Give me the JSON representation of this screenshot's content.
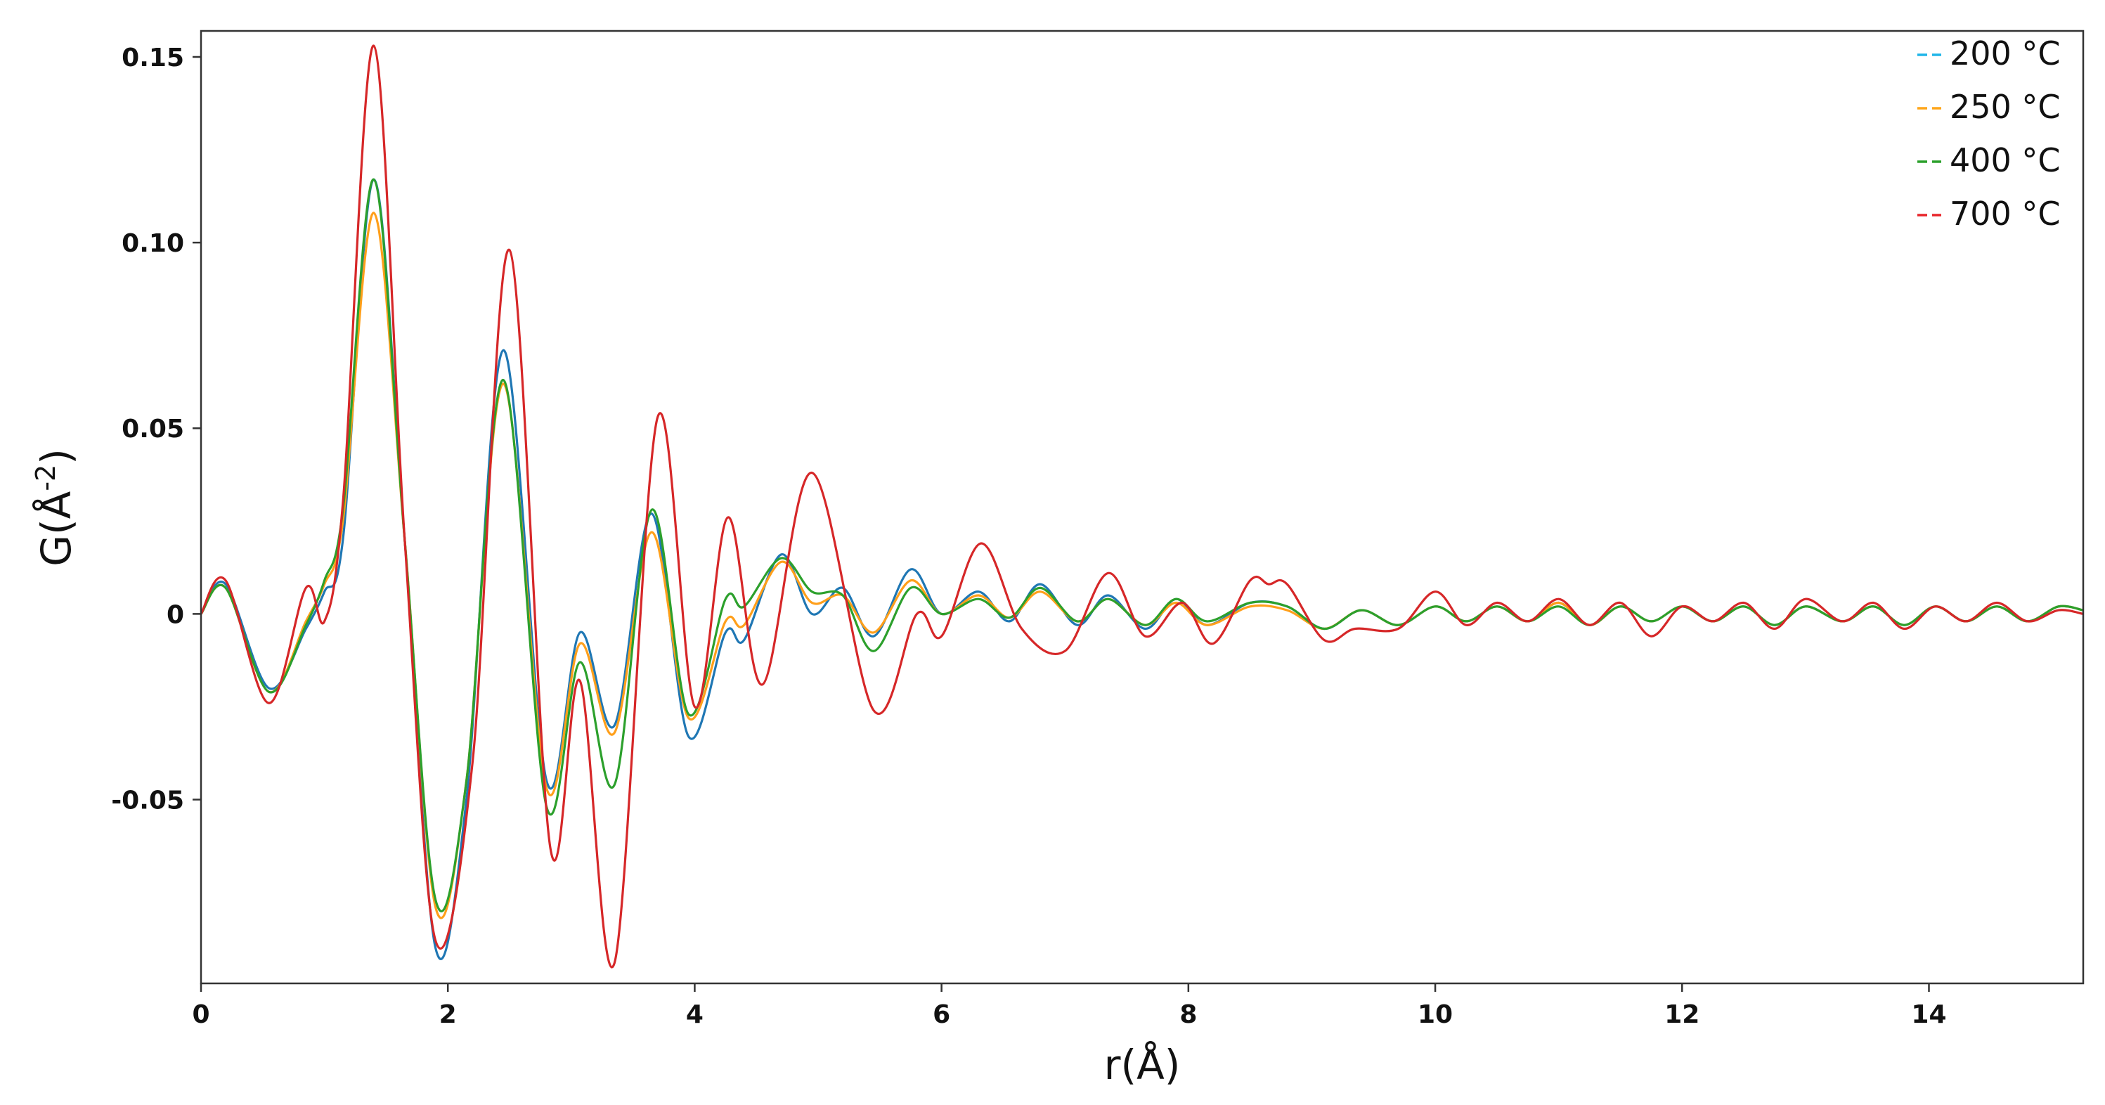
{
  "chart_data": {
    "type": "line",
    "title": "",
    "xlabel": "r(Å)",
    "ylabel_main": "G(Å",
    "ylabel_sup": "-2",
    "ylabel_close": ")",
    "xlim": [
      0,
      15.25
    ],
    "ylim": [
      -0.0995,
      0.157
    ],
    "xticks": [
      0,
      2,
      4,
      6,
      8,
      10,
      12,
      14
    ],
    "xtick_labels": [
      "0",
      "2",
      "4",
      "6",
      "8",
      "10",
      "12",
      "14"
    ],
    "yticks": [
      -0.05,
      0,
      0.05,
      0.1,
      0.15
    ],
    "ytick_labels": [
      "-0.05",
      "0",
      "0.05",
      "0.10",
      "0.15"
    ],
    "grid": false,
    "legend_position": "top-right",
    "legend_swatch_colors": [
      "#1fb5e8",
      "#ffa51a",
      "#2ca02c",
      "#e8252a"
    ],
    "series": [
      {
        "name": "200 °C",
        "color": "#1f77b4",
        "x": [
          0,
          0.2,
          0.55,
          0.85,
          1.0,
          1.15,
          1.4,
          1.65,
          1.9,
          2.15,
          2.45,
          2.8,
          3.07,
          3.35,
          3.65,
          3.95,
          4.25,
          4.4,
          4.7,
          4.95,
          5.2,
          5.45,
          5.75,
          6.0,
          6.3,
          6.55,
          6.8,
          7.1,
          7.35,
          7.65,
          7.9,
          8.15,
          8.5,
          8.8,
          9.1,
          9.4,
          9.7,
          10.0,
          10.25,
          10.5,
          10.75,
          11.0,
          11.25,
          11.5,
          11.75,
          12.0,
          12.25,
          12.5,
          12.75,
          13.0,
          13.3,
          13.55,
          13.8,
          14.05,
          14.3,
          14.55,
          14.8,
          15.05,
          15.25
        ],
        "y": [
          0,
          0.008,
          -0.02,
          -0.004,
          0.006,
          0.02,
          0.117,
          0.02,
          -0.09,
          -0.05,
          0.071,
          -0.045,
          -0.005,
          -0.03,
          0.027,
          -0.033,
          -0.005,
          -0.007,
          0.016,
          0.0,
          0.007,
          -0.006,
          0.012,
          0.0,
          0.006,
          -0.002,
          0.008,
          -0.003,
          0.005,
          -0.004,
          0.004,
          -0.003,
          0.003,
          0.002,
          -0.004,
          0.001,
          -0.003,
          0.002,
          -0.002,
          0.002,
          -0.002,
          0.003,
          -0.003,
          0.002,
          -0.002,
          0.002,
          -0.002,
          0.002,
          -0.003,
          0.002,
          -0.002,
          0.002,
          -0.003,
          0.002,
          -0.002,
          0.002,
          -0.002,
          0.002,
          0.001
        ]
      },
      {
        "name": "250 °C",
        "color": "#ff9f1a",
        "x": [
          0,
          0.2,
          0.55,
          0.85,
          1.0,
          1.15,
          1.4,
          1.65,
          1.9,
          2.15,
          2.45,
          2.8,
          3.07,
          3.35,
          3.65,
          3.95,
          4.25,
          4.4,
          4.7,
          4.95,
          5.2,
          5.45,
          5.75,
          6.0,
          6.3,
          6.55,
          6.8,
          7.1,
          7.35,
          7.65,
          7.9,
          8.15,
          8.5,
          8.8,
          9.1,
          9.4,
          9.7,
          10.0,
          10.25,
          10.5,
          10.75,
          11.0,
          11.25,
          11.5,
          11.75,
          12.0,
          12.25,
          12.5,
          12.75,
          13.0,
          13.3,
          13.55,
          13.8,
          14.05,
          14.3,
          14.55,
          14.8,
          15.05,
          15.25
        ],
        "y": [
          0,
          0.007,
          -0.021,
          -0.002,
          0.008,
          0.025,
          0.108,
          0.02,
          -0.079,
          -0.045,
          0.062,
          -0.047,
          -0.008,
          -0.032,
          0.022,
          -0.028,
          -0.002,
          -0.003,
          0.014,
          0.003,
          0.005,
          -0.005,
          0.009,
          0.0,
          0.005,
          -0.001,
          0.006,
          -0.002,
          0.004,
          -0.003,
          0.003,
          -0.003,
          0.002,
          0.001,
          -0.004,
          0.001,
          -0.003,
          0.002,
          -0.002,
          0.002,
          -0.002,
          0.003,
          -0.003,
          0.002,
          -0.002,
          0.002,
          -0.002,
          0.002,
          -0.003,
          0.002,
          -0.002,
          0.002,
          -0.003,
          0.002,
          -0.002,
          0.002,
          -0.002,
          0.002,
          0.001
        ]
      },
      {
        "name": "400 °C",
        "color": "#2ca02c",
        "x": [
          0,
          0.2,
          0.55,
          0.85,
          1.0,
          1.15,
          1.4,
          1.65,
          1.9,
          2.15,
          2.45,
          2.8,
          3.07,
          3.35,
          3.65,
          3.95,
          4.25,
          4.4,
          4.7,
          4.95,
          5.2,
          5.45,
          5.75,
          6.0,
          6.3,
          6.55,
          6.8,
          7.1,
          7.35,
          7.65,
          7.9,
          8.15,
          8.5,
          8.8,
          9.1,
          9.4,
          9.7,
          10.0,
          10.25,
          10.5,
          10.75,
          11.0,
          11.25,
          11.5,
          11.75,
          12.0,
          12.25,
          12.5,
          12.75,
          13.0,
          13.3,
          13.55,
          13.8,
          14.05,
          14.3,
          14.55,
          14.8,
          15.05,
          15.25
        ],
        "y": [
          0,
          0.007,
          -0.021,
          -0.003,
          0.009,
          0.028,
          0.117,
          0.02,
          -0.077,
          -0.045,
          0.063,
          -0.052,
          -0.013,
          -0.046,
          0.028,
          -0.027,
          0.004,
          0.002,
          0.015,
          0.006,
          0.005,
          -0.01,
          0.007,
          0.0,
          0.004,
          -0.001,
          0.007,
          -0.002,
          0.004,
          -0.003,
          0.004,
          -0.002,
          0.003,
          0.002,
          -0.004,
          0.001,
          -0.003,
          0.002,
          -0.002,
          0.002,
          -0.002,
          0.002,
          -0.003,
          0.002,
          -0.002,
          0.002,
          -0.002,
          0.002,
          -0.003,
          0.002,
          -0.002,
          0.002,
          -0.003,
          0.002,
          -0.002,
          0.002,
          -0.002,
          0.002,
          0.001
        ]
      },
      {
        "name": "700 °C",
        "color": "#d62728",
        "x": [
          0,
          0.2,
          0.55,
          0.85,
          1.0,
          1.15,
          1.4,
          1.65,
          1.9,
          2.2,
          2.5,
          2.83,
          3.07,
          3.35,
          3.7,
          4.0,
          4.27,
          4.55,
          4.95,
          5.45,
          5.8,
          6.0,
          6.32,
          6.65,
          7.0,
          7.35,
          7.65,
          7.95,
          8.2,
          8.5,
          8.65,
          8.8,
          9.1,
          9.35,
          9.7,
          10.0,
          10.25,
          10.5,
          10.75,
          11.0,
          11.25,
          11.5,
          11.75,
          12.0,
          12.25,
          12.5,
          12.75,
          13.0,
          13.3,
          13.55,
          13.8,
          14.05,
          14.3,
          14.55,
          14.8,
          15.05,
          15.25
        ],
        "y": [
          0,
          0.009,
          -0.024,
          0.007,
          -0.002,
          0.03,
          0.153,
          0.02,
          -0.088,
          -0.04,
          0.098,
          -0.063,
          -0.018,
          -0.094,
          0.053,
          -0.025,
          0.026,
          -0.019,
          0.038,
          -0.026,
          0.0,
          -0.006,
          0.019,
          -0.004,
          -0.01,
          0.011,
          -0.006,
          0.003,
          -0.008,
          0.009,
          0.008,
          0.008,
          -0.007,
          -0.004,
          -0.004,
          0.006,
          -0.003,
          0.003,
          -0.002,
          0.004,
          -0.003,
          0.003,
          -0.006,
          0.002,
          -0.002,
          0.003,
          -0.004,
          0.004,
          -0.002,
          0.003,
          -0.004,
          0.002,
          -0.002,
          0.003,
          -0.002,
          0.001,
          0.0
        ]
      }
    ]
  }
}
